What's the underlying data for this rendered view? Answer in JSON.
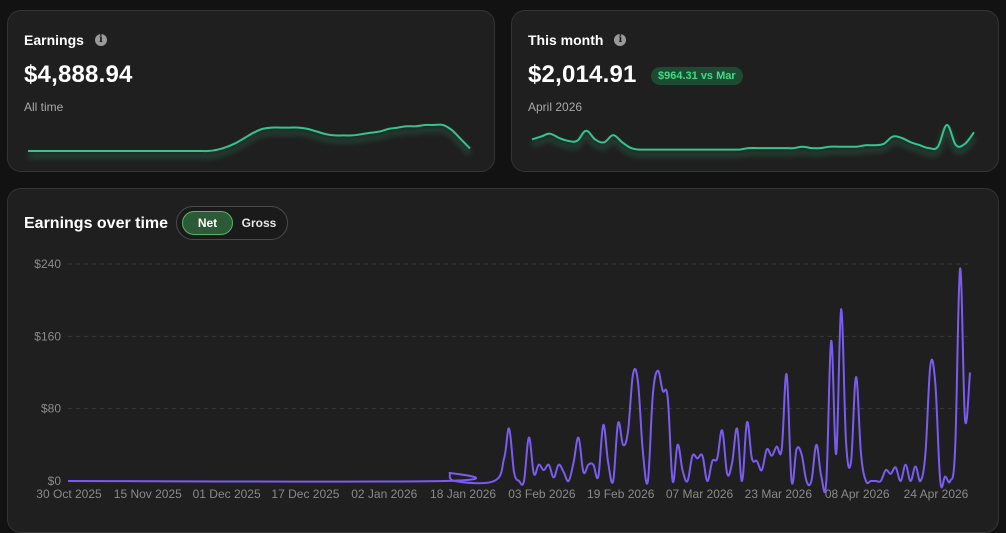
{
  "earnings_card": {
    "title": "Earnings",
    "value": "$4,888.94",
    "sub_label": "All time",
    "info_icon": "info-icon",
    "sparkline": [
      0,
      0,
      0,
      0,
      0,
      0,
      0,
      0,
      0,
      0,
      0,
      0,
      0,
      0,
      0,
      0,
      0,
      0,
      0,
      0,
      0,
      1,
      3,
      6,
      10,
      14,
      17,
      18,
      18,
      18,
      18,
      17,
      15,
      13,
      12,
      12,
      12,
      13,
      14,
      15,
      17,
      18,
      19,
      19,
      20,
      20,
      20,
      16,
      9,
      2
    ]
  },
  "month_card": {
    "title": "This month",
    "value": "$2,014.91",
    "badge": "$964.31 vs Mar",
    "sub_label": "April 2026",
    "info_icon": "info-icon",
    "sparkline": [
      8,
      10,
      12,
      9,
      7,
      7,
      14,
      8,
      6,
      11,
      6,
      2,
      1,
      1,
      1,
      1,
      1,
      1,
      1,
      1,
      1,
      1,
      1,
      1,
      2,
      2,
      2,
      2,
      2,
      2,
      3,
      2,
      2,
      3,
      3,
      3,
      3,
      4,
      4,
      5,
      10,
      9,
      6,
      4,
      2,
      3,
      18,
      4,
      5,
      13
    ]
  },
  "chart_section": {
    "title": "Earnings over time",
    "toggle": {
      "net_label": "Net",
      "gross_label": "Gross",
      "selected": "Net"
    }
  },
  "colors": {
    "accent_green": "#3ddc84",
    "sparkline_green": "#36c48e",
    "line_purple": "#7b5cf0",
    "badge_bg": "#1d4a33"
  },
  "chart_data": {
    "type": "line",
    "title": "Earnings over time",
    "xlabel": "",
    "ylabel": "",
    "ylim": [
      0,
      240
    ],
    "y_ticks": [
      "$0",
      "$80",
      "$160",
      "$240"
    ],
    "grid": true,
    "x_ticks": [
      "30 Oct 2025",
      "15 Nov 2025",
      "01 Dec 2025",
      "17 Dec 2025",
      "02 Jan 2026",
      "18 Jan 2026",
      "03 Feb 2026",
      "19 Feb 2026",
      "07 Mar 2026",
      "23 Mar 2026",
      "08 Apr 2026",
      "24 Apr 2026"
    ],
    "x_start": "2025-10-30",
    "x_end": "2026-04-30",
    "series": [
      {
        "name": "",
        "points": [
          [
            "2025-10-30",
            0
          ],
          [
            "2026-01-14",
            0
          ],
          [
            "2026-01-15",
            9
          ],
          [
            "2026-01-16",
            0
          ],
          [
            "2026-01-24",
            0
          ],
          [
            "2026-01-26",
            25
          ],
          [
            "2026-01-27",
            58
          ],
          [
            "2026-01-28",
            10
          ],
          [
            "2026-01-29",
            0
          ],
          [
            "2026-01-30",
            0
          ],
          [
            "2026-01-31",
            48
          ],
          [
            "2026-02-01",
            8
          ],
          [
            "2026-02-02",
            18
          ],
          [
            "2026-02-03",
            12
          ],
          [
            "2026-02-04",
            18
          ],
          [
            "2026-02-05",
            4
          ],
          [
            "2026-02-06",
            18
          ],
          [
            "2026-02-07",
            10
          ],
          [
            "2026-02-08",
            0
          ],
          [
            "2026-02-09",
            20
          ],
          [
            "2026-02-10",
            48
          ],
          [
            "2026-02-11",
            10
          ],
          [
            "2026-02-12",
            18
          ],
          [
            "2026-02-13",
            18
          ],
          [
            "2026-02-14",
            5
          ],
          [
            "2026-02-15",
            62
          ],
          [
            "2026-02-16",
            20
          ],
          [
            "2026-02-17",
            0
          ],
          [
            "2026-02-18",
            64
          ],
          [
            "2026-02-19",
            40
          ],
          [
            "2026-02-20",
            55
          ],
          [
            "2026-02-21",
            118
          ],
          [
            "2026-02-22",
            110
          ],
          [
            "2026-02-23",
            32
          ],
          [
            "2026-02-24",
            0
          ],
          [
            "2026-02-25",
            95
          ],
          [
            "2026-02-26",
            122
          ],
          [
            "2026-02-27",
            100
          ],
          [
            "2026-02-28",
            92
          ],
          [
            "2026-03-01",
            0
          ],
          [
            "2026-03-02",
            40
          ],
          [
            "2026-03-03",
            12
          ],
          [
            "2026-03-04",
            0
          ],
          [
            "2026-03-05",
            28
          ],
          [
            "2026-03-06",
            25
          ],
          [
            "2026-03-07",
            28
          ],
          [
            "2026-03-08",
            0
          ],
          [
            "2026-03-09",
            22
          ],
          [
            "2026-03-10",
            25
          ],
          [
            "2026-03-11",
            56
          ],
          [
            "2026-03-12",
            8
          ],
          [
            "2026-03-13",
            20
          ],
          [
            "2026-03-14",
            58
          ],
          [
            "2026-03-15",
            0
          ],
          [
            "2026-03-16",
            65
          ],
          [
            "2026-03-17",
            25
          ],
          [
            "2026-03-18",
            22
          ],
          [
            "2026-03-19",
            12
          ],
          [
            "2026-03-20",
            35
          ],
          [
            "2026-03-21",
            28
          ],
          [
            "2026-03-22",
            38
          ],
          [
            "2026-03-23",
            35
          ],
          [
            "2026-03-24",
            118
          ],
          [
            "2026-03-25",
            0
          ],
          [
            "2026-03-26",
            35
          ],
          [
            "2026-03-27",
            30
          ],
          [
            "2026-03-28",
            0
          ],
          [
            "2026-03-29",
            0
          ],
          [
            "2026-03-30",
            40
          ],
          [
            "2026-03-31",
            5
          ],
          [
            "2026-04-01",
            0
          ],
          [
            "2026-04-02",
            155
          ],
          [
            "2026-04-03",
            30
          ],
          [
            "2026-04-04",
            190
          ],
          [
            "2026-04-05",
            42
          ],
          [
            "2026-04-06",
            22
          ],
          [
            "2026-04-07",
            115
          ],
          [
            "2026-04-08",
            30
          ],
          [
            "2026-04-09",
            0
          ],
          [
            "2026-04-10",
            0
          ],
          [
            "2026-04-11",
            0
          ],
          [
            "2026-04-12",
            0
          ],
          [
            "2026-04-13",
            12
          ],
          [
            "2026-04-14",
            8
          ],
          [
            "2026-04-15",
            15
          ],
          [
            "2026-04-16",
            0
          ],
          [
            "2026-04-17",
            18
          ],
          [
            "2026-04-18",
            0
          ],
          [
            "2026-04-19",
            16
          ],
          [
            "2026-04-20",
            0
          ],
          [
            "2026-04-21",
            30
          ],
          [
            "2026-04-22",
            128
          ],
          [
            "2026-04-23",
            108
          ],
          [
            "2026-04-24",
            0
          ],
          [
            "2026-04-25",
            5
          ],
          [
            "2026-04-26",
            0
          ],
          [
            "2026-04-27",
            35
          ],
          [
            "2026-04-28",
            235
          ],
          [
            "2026-04-29",
            68
          ],
          [
            "2026-04-30",
            120
          ]
        ]
      }
    ]
  }
}
